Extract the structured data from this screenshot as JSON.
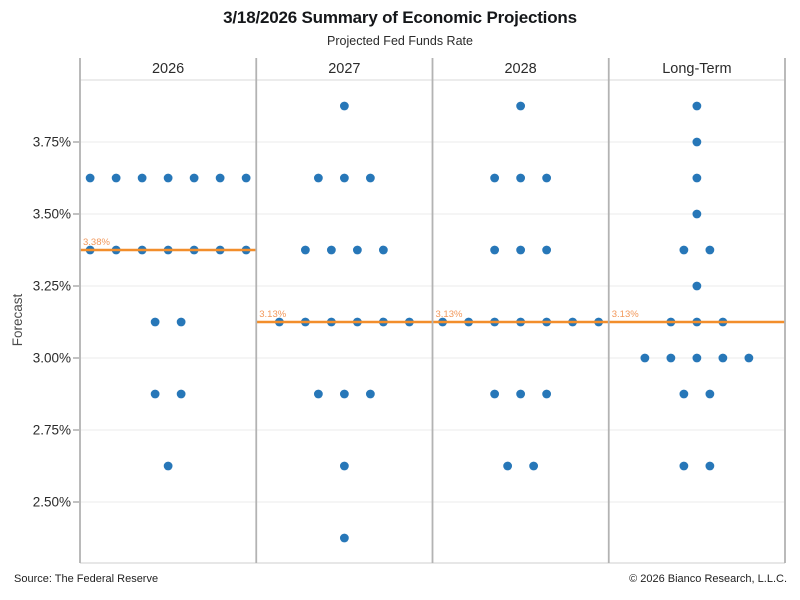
{
  "chart_data": {
    "type": "scatter",
    "title": "3/18/2026 Summary of Economic Projections",
    "subtitle": "Projected Fed Funds Rate",
    "ylabel": "Forecast",
    "ylim": [
      2.29,
      3.97
    ],
    "grid": "horizontal-on",
    "legend": "none",
    "yticks": [
      {
        "value": 3.75,
        "label": "3.75%"
      },
      {
        "value": 3.5,
        "label": "3.50%"
      },
      {
        "value": 3.25,
        "label": "3.25%"
      },
      {
        "value": 3.0,
        "label": "3.00%"
      },
      {
        "value": 2.75,
        "label": "2.75%"
      },
      {
        "value": 2.5,
        "label": "2.50%"
      }
    ],
    "panels": [
      {
        "label": "2026",
        "median_value": 3.375,
        "median_label": "3.38%",
        "dots": [
          {
            "rate": 3.625,
            "count": 7
          },
          {
            "rate": 3.375,
            "count": 7
          },
          {
            "rate": 3.125,
            "count": 2
          },
          {
            "rate": 2.875,
            "count": 2
          },
          {
            "rate": 2.625,
            "count": 1
          }
        ]
      },
      {
        "label": "2027",
        "median_value": 3.125,
        "median_label": "3.13%",
        "dots": [
          {
            "rate": 3.875,
            "count": 1
          },
          {
            "rate": 3.625,
            "count": 3
          },
          {
            "rate": 3.375,
            "count": 4
          },
          {
            "rate": 3.125,
            "count": 6
          },
          {
            "rate": 2.875,
            "count": 3
          },
          {
            "rate": 2.625,
            "count": 1
          },
          {
            "rate": 2.375,
            "count": 1
          }
        ]
      },
      {
        "label": "2028",
        "median_value": 3.125,
        "median_label": "3.13%",
        "dots": [
          {
            "rate": 3.875,
            "count": 1
          },
          {
            "rate": 3.625,
            "count": 3
          },
          {
            "rate": 3.375,
            "count": 3
          },
          {
            "rate": 3.125,
            "count": 7
          },
          {
            "rate": 2.875,
            "count": 3
          },
          {
            "rate": 2.625,
            "count": 2
          }
        ]
      },
      {
        "label": "Long-Term",
        "median_value": 3.125,
        "median_label": "3.13%",
        "dots": [
          {
            "rate": 3.875,
            "count": 1
          },
          {
            "rate": 3.75,
            "count": 1
          },
          {
            "rate": 3.625,
            "count": 1
          },
          {
            "rate": 3.5,
            "count": 1
          },
          {
            "rate": 3.375,
            "count": 2
          },
          {
            "rate": 3.25,
            "count": 1
          },
          {
            "rate": 3.125,
            "count": 3
          },
          {
            "rate": 3.0,
            "count": 5
          },
          {
            "rate": 2.875,
            "count": 2
          },
          {
            "rate": 2.625,
            "count": 2
          }
        ]
      }
    ],
    "colors": {
      "dot": "#2777B8",
      "median_line": "#F28E2B",
      "median_label": "#F2985B"
    }
  },
  "footer": {
    "source": "Source: The Federal Reserve",
    "copyright": "© 2026 Bianco Research, L.L.C."
  }
}
